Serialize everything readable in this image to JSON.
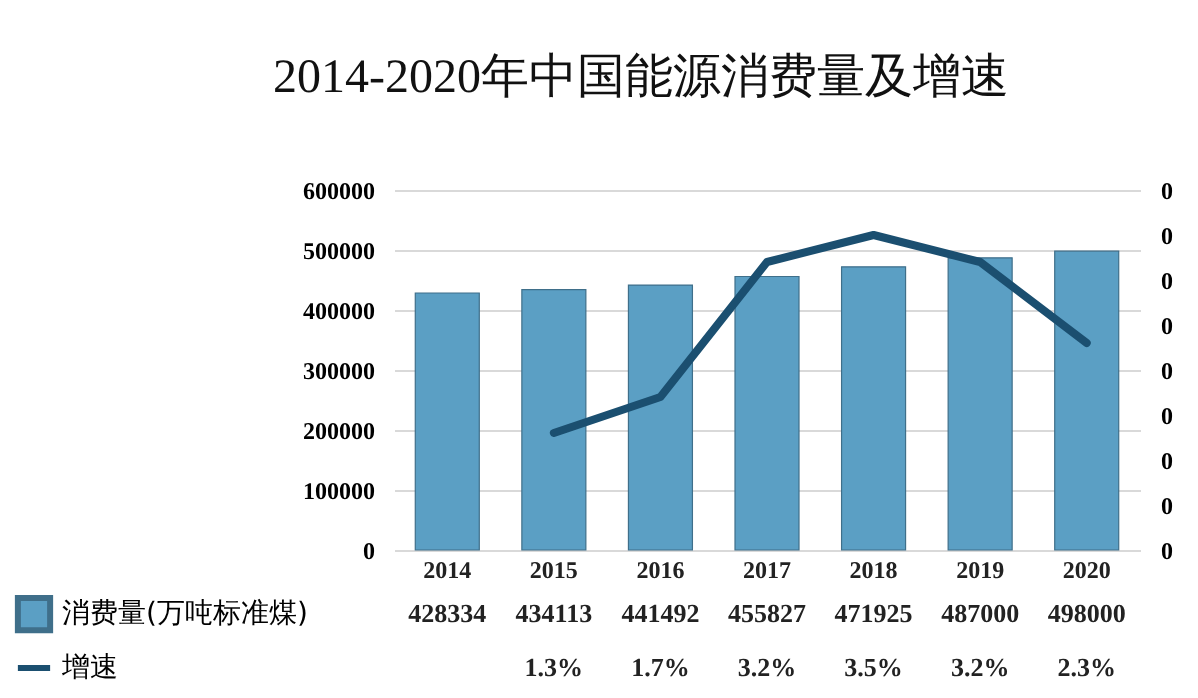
{
  "chart_data": {
    "type": "bar",
    "title": "2014-2020年中国能源消费量及增速",
    "categories": [
      "2014",
      "2015",
      "2016",
      "2017",
      "2018",
      "2019",
      "2020"
    ],
    "series": [
      {
        "name": "消费量(万吨标准煤)",
        "color": "#5b9fc4",
        "values": [
          428334,
          434113,
          441492,
          455827,
          471925,
          487000,
          498000
        ],
        "value_labels": [
          "428334",
          "434113",
          "441492",
          "455827",
          "471925",
          "487000",
          "498000"
        ]
      },
      {
        "name": "增速",
        "type": "line",
        "axis": "y2",
        "color": "#1b4f70",
        "values": [
          null,
          0.013,
          0.017,
          0.032,
          0.035,
          0.032,
          0.023
        ],
        "value_labels": [
          null,
          "1.3%",
          "1.7%",
          "3.2%",
          "3.5%",
          "3.2%",
          "2.3%"
        ]
      }
    ],
    "ylim": [
      0,
      600000
    ],
    "yticks": [
      0,
      100000,
      200000,
      300000,
      400000,
      500000,
      600000
    ],
    "y2lim": [
      0,
      0.04
    ],
    "y2ticks": [
      0,
      {
        "value": 0.005,
        "label": "0"
      },
      {
        "value": 0.01,
        "label": "0"
      },
      {
        "value": 0.015,
        "label": "0"
      },
      {
        "value": 0.02,
        "label": "0"
      },
      {
        "value": 0.025,
        "label": "0"
      },
      {
        "value": 0.03,
        "label": "0"
      },
      {
        "value": 0.035,
        "label": "0"
      },
      {
        "value": 0.04,
        "label": "0"
      }
    ],
    "grid": "y",
    "legend": "bottom",
    "line_style": "solid",
    "marker": "none"
  }
}
